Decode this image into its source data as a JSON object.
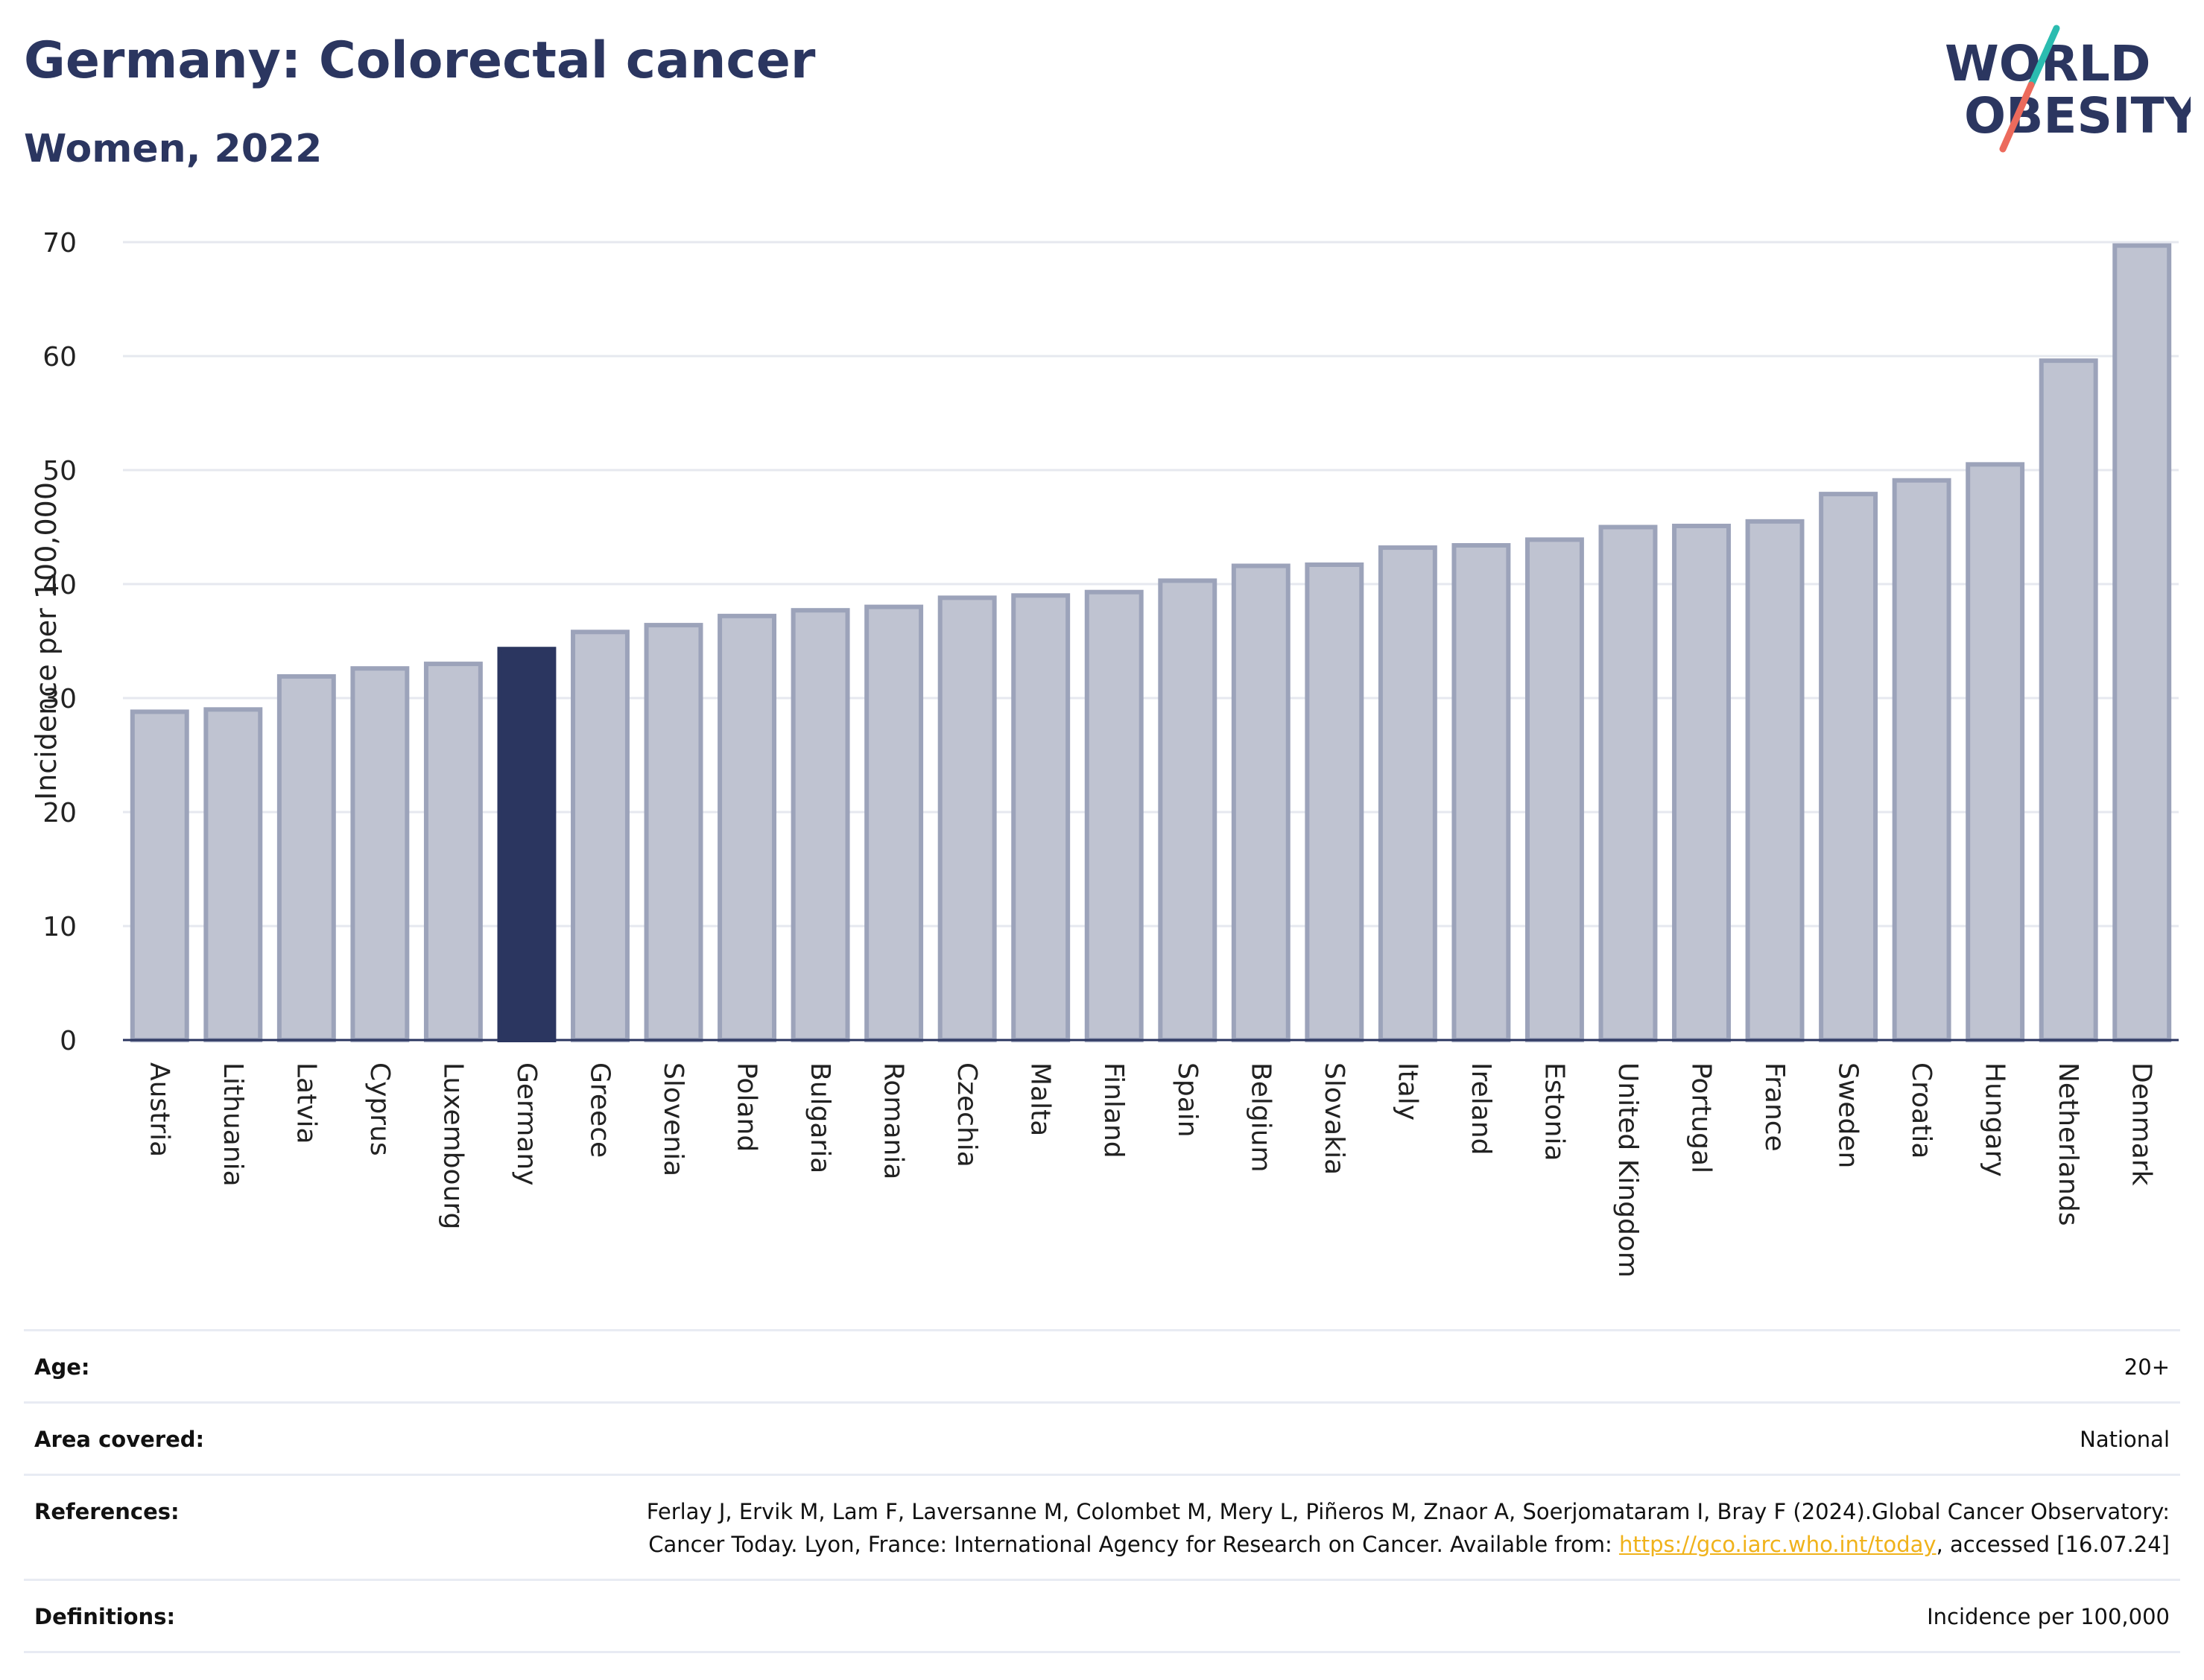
{
  "title": "Germany: Colorectal cancer",
  "subtitle": "Women, 2022",
  "logo": {
    "line1": "WORLD",
    "line2": "OBESITY",
    "colors": {
      "text": "#2b3660",
      "slash_top": "#2bbcb0",
      "slash_bottom": "#ec6a5c"
    }
  },
  "colors": {
    "bar": "#bfc3d1",
    "bar_stroke": "#9ca3ba",
    "highlight": "#2b3660",
    "grid": "#e6e8ef",
    "axis": "#2b3660"
  },
  "chart_data": {
    "type": "bar",
    "ylabel": "Incidence per 100,000",
    "ylim": [
      0,
      70
    ],
    "yticks": [
      0,
      10,
      20,
      30,
      40,
      50,
      60,
      70
    ],
    "grid": true,
    "highlight": "Germany",
    "categories": [
      "Austria",
      "Lithuania",
      "Latvia",
      "Cyprus",
      "Luxembourg",
      "Germany",
      "Greece",
      "Slovenia",
      "Poland",
      "Bulgaria",
      "Romania",
      "Czechia",
      "Malta",
      "Finland",
      "Spain",
      "Belgium",
      "Slovakia",
      "Italy",
      "Ireland",
      "Estonia",
      "United Kingdom",
      "Portugal",
      "France",
      "Sweden",
      "Croatia",
      "Hungary",
      "Netherlands",
      "Denmark"
    ],
    "values": [
      28.8,
      29.0,
      31.9,
      32.6,
      33.0,
      34.3,
      35.8,
      36.4,
      37.2,
      37.7,
      38.0,
      38.8,
      39.0,
      39.3,
      40.3,
      41.6,
      41.7,
      43.2,
      43.4,
      43.9,
      45.0,
      45.1,
      45.5,
      47.9,
      49.1,
      50.5,
      59.6,
      69.7
    ]
  },
  "info": {
    "age_label": "Age:",
    "age_value": "20+",
    "area_label": "Area covered:",
    "area_value": "National",
    "references_label": "References:",
    "references_text_1": "Ferlay J, Ervik M, Lam F, Laversanne M, Colombet M, Mery L, Piñeros M, Znaor A, Soerjomataram I, Bray F (2024).Global Cancer Observatory: Cancer Today. Lyon, France: International Agency for Research on Cancer. Available from: ",
    "references_link": "https://gco.iarc.who.int/today",
    "references_text_2": ", accessed [16.07.24]",
    "definitions_label": "Definitions:",
    "definitions_value": "Incidence per 100,000"
  }
}
